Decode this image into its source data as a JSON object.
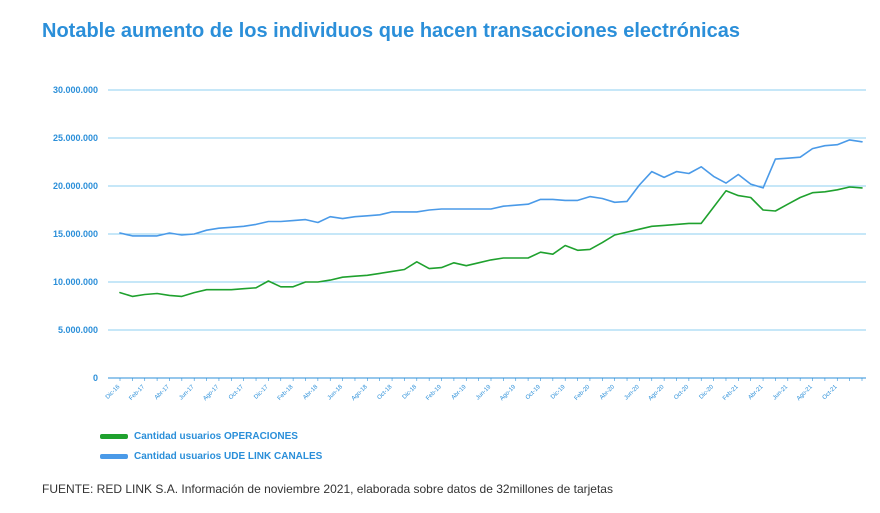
{
  "chart_data": {
    "type": "line",
    "title": "Notable aumento de los individuos que hacen transacciones electrónicas",
    "xlabel": "",
    "ylabel": "",
    "ylim": [
      0,
      30000000
    ],
    "yticks": [
      0,
      5000000,
      10000000,
      15000000,
      20000000,
      25000000,
      30000000
    ],
    "ytick_labels": [
      "0",
      "5.000.000",
      "10.000.000",
      "15.000.000",
      "20.000.000",
      "25.000.000",
      "30.000.000"
    ],
    "xtick_labels": [
      "Dic-16",
      "Feb-17",
      "Abr-17",
      "Jun-17",
      "Ago-17",
      "Oct-17",
      "Dic-17",
      "Feb-18",
      "Abr-18",
      "Jun-18",
      "Ago-18",
      "Oct-18",
      "Dic-18",
      "Feb-19",
      "Abr-19",
      "Jun-19",
      "Ago-19",
      "Oct-19",
      "Dic-19",
      "Feb-20",
      "Abr-20",
      "Jun-20",
      "Ago-20",
      "Oct-20",
      "Dic-20",
      "Feb-21",
      "Abr-21",
      "Jun-21",
      "Ago-21",
      "Oct-21"
    ],
    "grid": true,
    "legend_position": "bottom-left",
    "series": [
      {
        "name": "Cantidad usuarios OPERACIONES",
        "color": "#1fa12e",
        "values": [
          8900000,
          8500000,
          8700000,
          8800000,
          8600000,
          8500000,
          8900000,
          9200000,
          9200000,
          9200000,
          9300000,
          9400000,
          10100000,
          9500000,
          9500000,
          10000000,
          10000000,
          10200000,
          10500000,
          10600000,
          10700000,
          10900000,
          11100000,
          11300000,
          12100000,
          11400000,
          11500000,
          12000000,
          11700000,
          12000000,
          12300000,
          12500000,
          12500000,
          12500000,
          13100000,
          12900000,
          13800000,
          13300000,
          13400000,
          14100000,
          14900000,
          15200000,
          15500000,
          15800000,
          15900000,
          16000000,
          16100000,
          16100000,
          17800000,
          19500000,
          19000000,
          18800000,
          17500000,
          17400000,
          18100000,
          18800000,
          19300000,
          19400000,
          19600000,
          19900000,
          19800000
        ]
      },
      {
        "name": "Cantidad usuarios UDE LINK CANALES",
        "color": "#4a9ae8",
        "values": [
          15100000,
          14800000,
          14800000,
          14800000,
          15100000,
          14900000,
          15000000,
          15400000,
          15600000,
          15700000,
          15800000,
          16000000,
          16300000,
          16300000,
          16400000,
          16500000,
          16200000,
          16800000,
          16600000,
          16800000,
          16900000,
          17000000,
          17300000,
          17300000,
          17300000,
          17500000,
          17600000,
          17600000,
          17600000,
          17600000,
          17600000,
          17900000,
          18000000,
          18100000,
          18600000,
          18600000,
          18500000,
          18500000,
          18900000,
          18700000,
          18300000,
          18400000,
          20100000,
          21500000,
          20900000,
          21500000,
          21300000,
          22000000,
          21000000,
          20300000,
          21200000,
          20200000,
          19800000,
          22800000,
          22900000,
          23000000,
          23900000,
          24200000,
          24300000,
          24800000,
          24600000
        ]
      }
    ]
  },
  "legend": {
    "items": [
      {
        "label": "Cantidad usuarios OPERACIONES",
        "color": "#1fa12e"
      },
      {
        "label": "Cantidad usuarios UDE LINK CANALES",
        "color": "#4a9ae8"
      }
    ]
  },
  "footer": {
    "source": "FUENTE: RED LINK S.A. Información de noviembre 2021, elaborada sobre datos de 32millones de tarjetas"
  },
  "colors": {
    "accent": "#2b8fd9",
    "gridline": "#8ccff0",
    "axis": "#2b8fd9"
  }
}
